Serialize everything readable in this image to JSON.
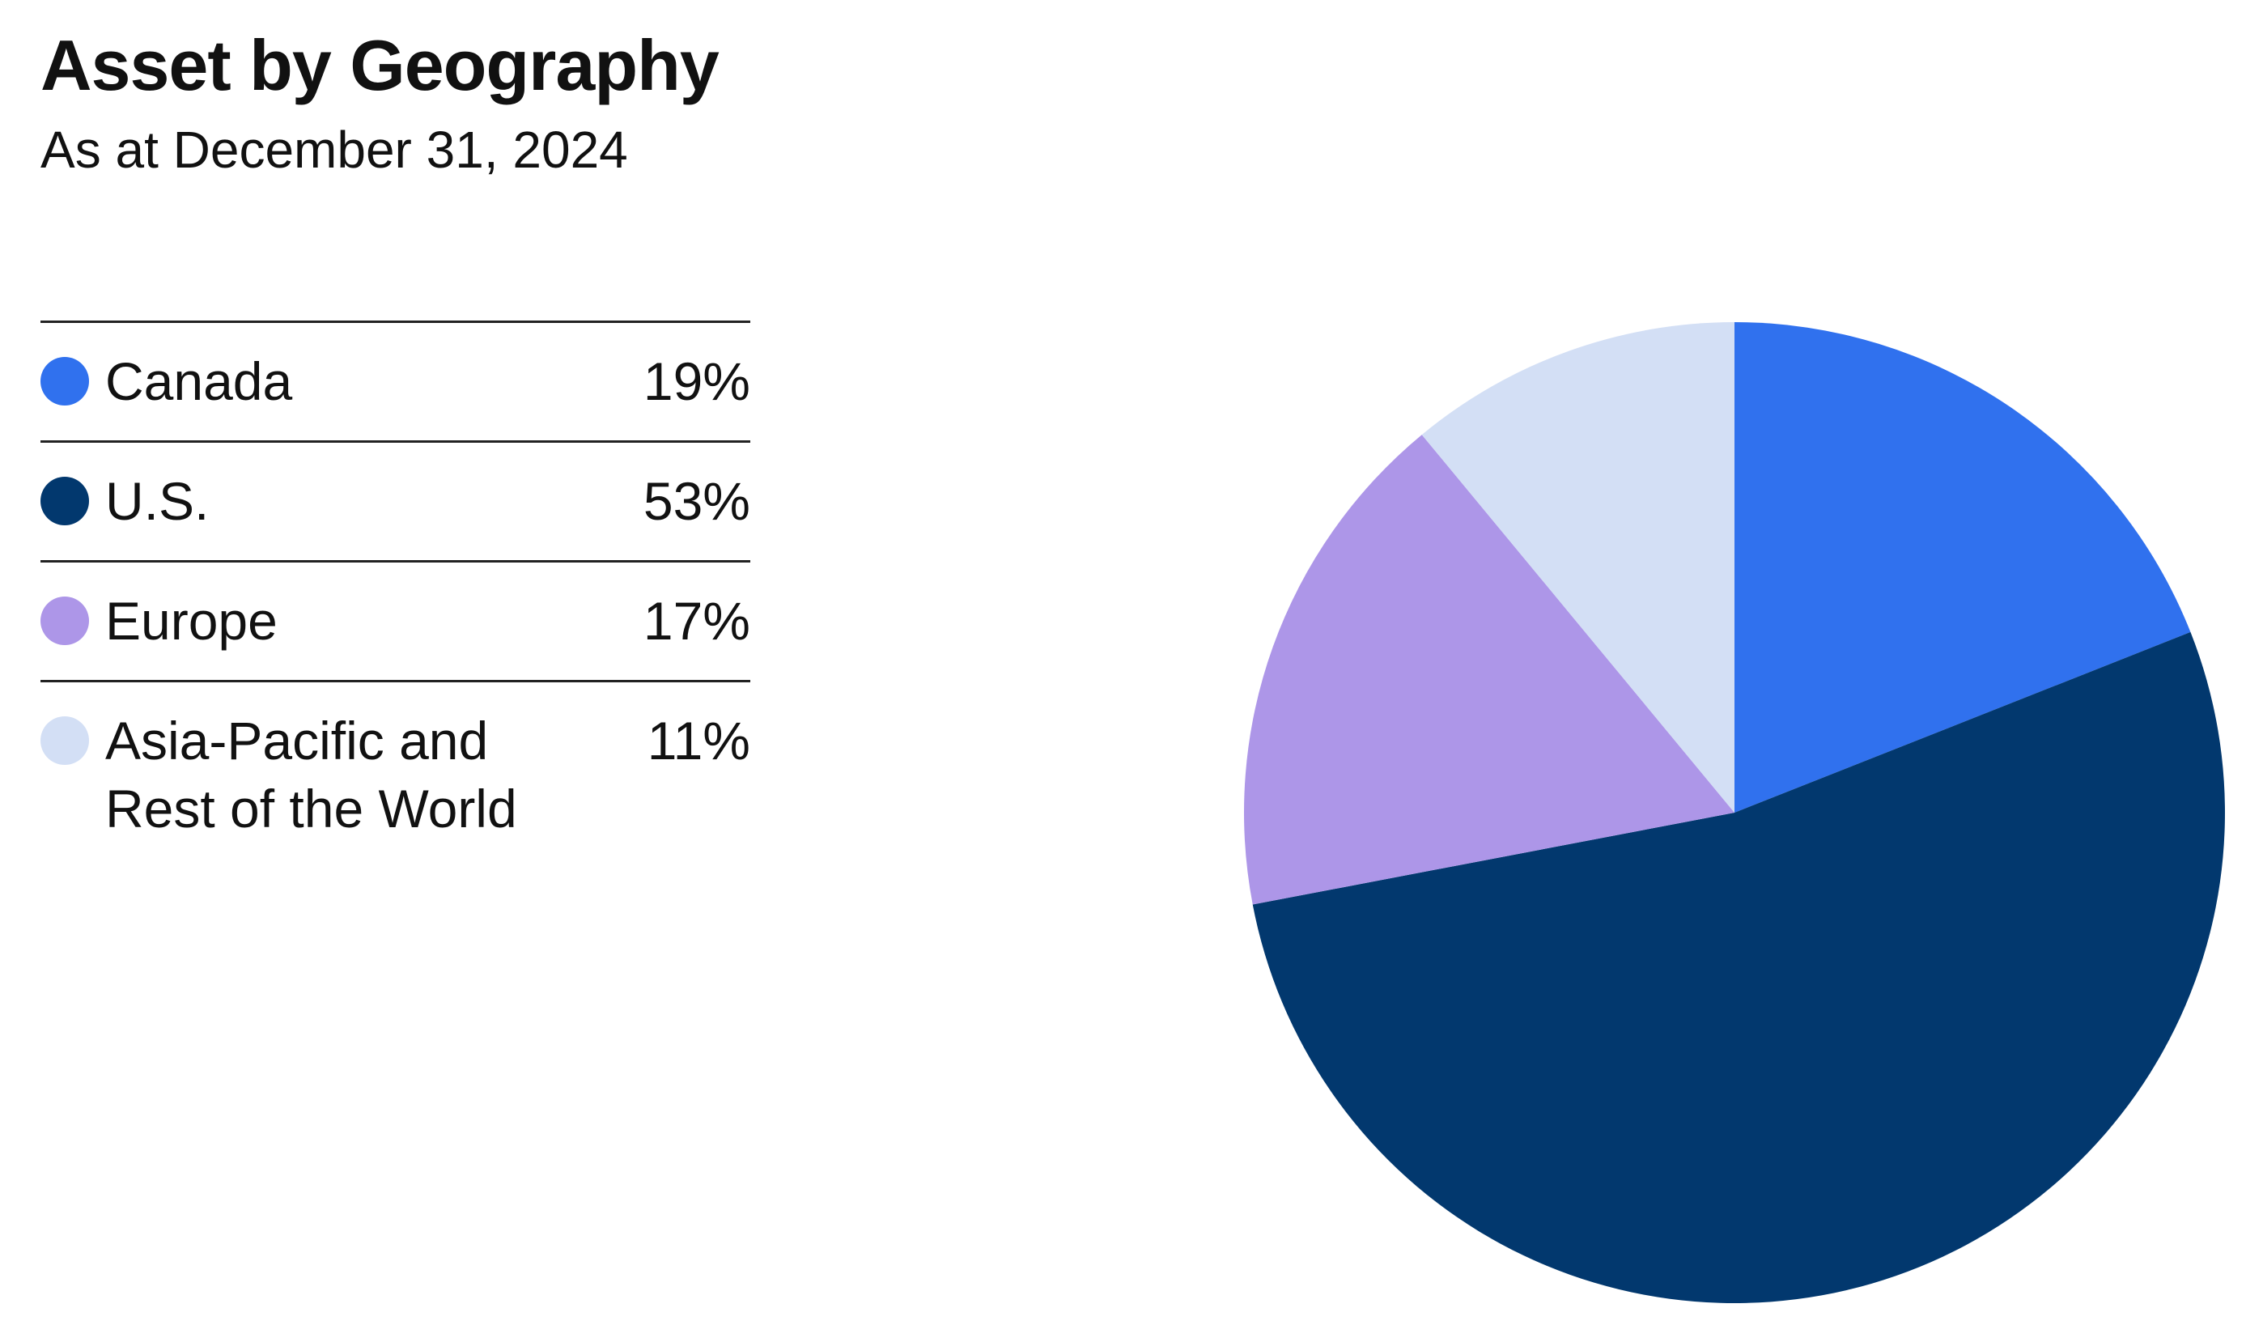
{
  "chart_data": {
    "type": "pie",
    "title": "Asset by Geography",
    "subtitle": "As at December 31, 2024",
    "categories": [
      "Canada",
      "U.S.",
      "Europe",
      "Asia-Pacific and Rest of the World"
    ],
    "values": [
      19,
      53,
      17,
      11
    ],
    "value_labels": [
      "19%",
      "53%",
      "17%",
      "11%"
    ],
    "colors": [
      "#3071ee",
      "#02386e",
      "#ad96e8",
      "#d3dff5"
    ]
  }
}
